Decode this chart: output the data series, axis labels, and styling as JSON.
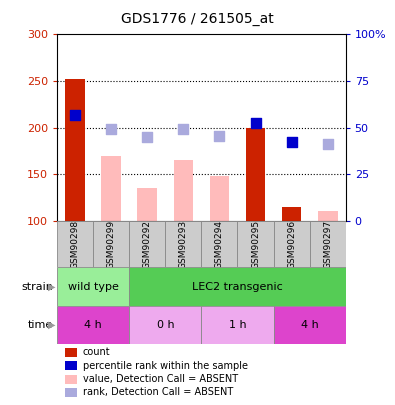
{
  "title": "GDS1776 / 261505_at",
  "samples": [
    "GSM90298",
    "GSM90299",
    "GSM90292",
    "GSM90293",
    "GSM90294",
    "GSM90295",
    "GSM90296",
    "GSM90297"
  ],
  "bar_values": [
    252,
    null,
    null,
    null,
    null,
    200,
    115,
    null
  ],
  "pink_bar_values": [
    null,
    170,
    135,
    165,
    148,
    null,
    null,
    110
  ],
  "rank_dots_dark": [
    213,
    null,
    null,
    null,
    null,
    205,
    185,
    null
  ],
  "rank_dots_light": [
    null,
    198,
    190,
    198,
    191,
    null,
    null,
    182
  ],
  "ylim_left": [
    100,
    300
  ],
  "ylim_right": [
    0,
    100
  ],
  "yticks_left": [
    100,
    150,
    200,
    250,
    300
  ],
  "yticks_right": [
    0,
    25,
    50,
    75,
    100
  ],
  "ytick_labels_left": [
    "100",
    "150",
    "200",
    "250",
    "300"
  ],
  "ytick_labels_right": [
    "0",
    "25",
    "50",
    "75",
    "100%"
  ],
  "hlines": [
    150,
    200,
    250
  ],
  "strain_labels": [
    {
      "label": "wild type",
      "start": 0,
      "end": 2,
      "color": "#99ee99"
    },
    {
      "label": "LEC2 transgenic",
      "start": 2,
      "end": 8,
      "color": "#55cc55"
    }
  ],
  "time_labels": [
    {
      "label": "4 h",
      "start": 0,
      "end": 2,
      "color": "#dd44cc"
    },
    {
      "label": "0 h",
      "start": 2,
      "end": 4,
      "color": "#eeaaee"
    },
    {
      "label": "1 h",
      "start": 4,
      "end": 6,
      "color": "#eeaaee"
    },
    {
      "label": "4 h",
      "start": 6,
      "end": 8,
      "color": "#dd44cc"
    }
  ],
  "legend_items": [
    {
      "label": "count",
      "color": "#cc2200"
    },
    {
      "label": "percentile rank within the sample",
      "color": "#0000cc"
    },
    {
      "label": "value, Detection Call = ABSENT",
      "color": "#ffbbbb"
    },
    {
      "label": "rank, Detection Call = ABSENT",
      "color": "#aaaadd"
    }
  ],
  "bar_color": "#cc2200",
  "pink_bar_color": "#ffbbbb",
  "dark_dot_color": "#0000cc",
  "light_dot_color": "#aaaadd",
  "bar_width": 0.55,
  "dot_size": 55,
  "bg_color": "#ffffff",
  "plot_bg": "#ffffff",
  "tick_color_left": "#cc2200",
  "tick_color_right": "#0000cc",
  "sample_band_color": "#cccccc",
  "sample_band_border": "#888888"
}
